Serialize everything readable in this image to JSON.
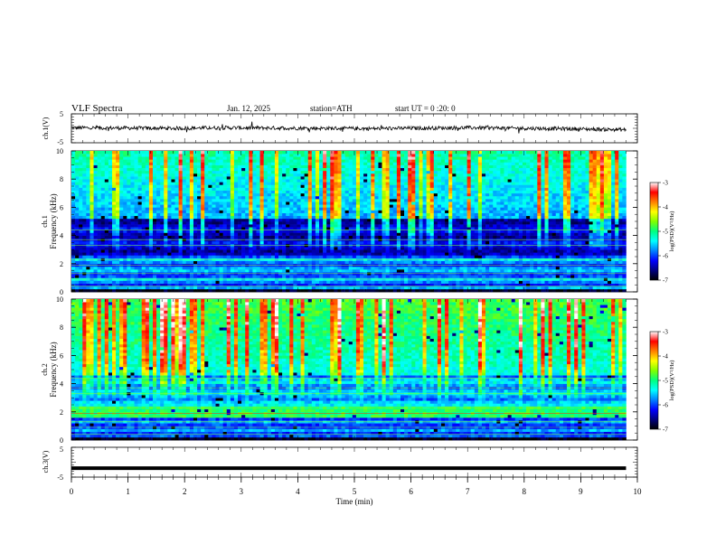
{
  "header": {
    "title": "VLF  Spectra",
    "date": "Jan. 12, 2025",
    "station": "station=ATH",
    "start_ut": "start  UT  =   0  :20: 0"
  },
  "chart_data": [
    {
      "type": "line",
      "panel": "ch1-waveform",
      "ylabel": "ch.1(V)",
      "ylim": [
        -5,
        5
      ],
      "yticks": [
        "5",
        "-5"
      ],
      "xlim": [
        0,
        10
      ],
      "description_level": "noisy trace hovering near 0 V",
      "series": [
        {
          "values": [
            0.2,
            0.1,
            0.0,
            0.2,
            0.1,
            0.0,
            -0.1,
            0.1,
            0.2,
            0.0,
            -0.2,
            -0.5
          ]
        }
      ]
    },
    {
      "type": "heatmap",
      "panel": "ch1-spectrogram",
      "ylabel": "ch.1\nFrequency  (kHz)",
      "ylim": [
        0,
        10
      ],
      "yticks": [
        "0",
        "2",
        "4",
        "6",
        "8",
        "10"
      ],
      "xlim": [
        0,
        10
      ],
      "colorbar": {
        "label": "log(PSD)(V²/Hz)",
        "ticks": [
          "-3",
          "-4",
          "-5",
          "-6",
          "-7"
        ],
        "range": [
          -7,
          -3
        ]
      }
    },
    {
      "type": "heatmap",
      "panel": "ch2-spectrogram",
      "ylabel": "ch.2\nFrequency  (kHz)",
      "ylim": [
        0,
        10
      ],
      "yticks": [
        "0",
        "2",
        "4",
        "6",
        "8",
        "10"
      ],
      "xlim": [
        0,
        10
      ],
      "colorbar": {
        "label": "log(PSD)(V²/Hz)",
        "ticks": [
          "-3",
          "-4",
          "-5",
          "-6",
          "-7"
        ],
        "range": [
          -7,
          -3
        ]
      }
    },
    {
      "type": "line",
      "panel": "ch3-waveform",
      "ylabel": "ch.3(V)",
      "ylim": [
        -5,
        5
      ],
      "yticks": [
        "5",
        "-5"
      ],
      "xlim": [
        0,
        10
      ],
      "series": [
        {
          "values": [
            -2,
            -2,
            -2,
            -2,
            -2,
            -2,
            -2,
            -2,
            -2,
            -2,
            -2,
            -2
          ]
        }
      ]
    }
  ],
  "xaxis": {
    "label": "Time  (min)",
    "ticks": [
      "0",
      "1",
      "2",
      "3",
      "4",
      "5",
      "6",
      "7",
      "8",
      "9",
      "10"
    ],
    "data_end": 9.8
  },
  "colors": {
    "colormap": [
      "#000000",
      "#00007f",
      "#0000ff",
      "#0080ff",
      "#00ffff",
      "#00ff80",
      "#80ff00",
      "#ffff00",
      "#ff8000",
      "#ff0000",
      "#ffffff"
    ]
  }
}
